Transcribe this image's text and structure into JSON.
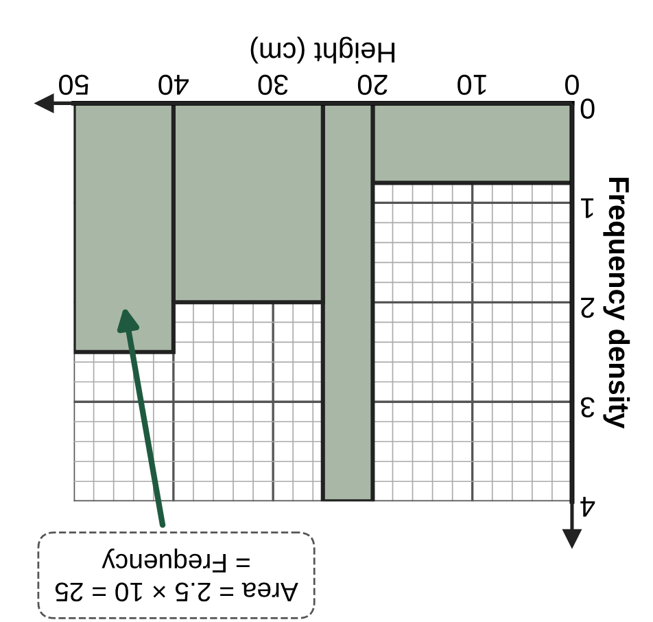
{
  "chart_data": {
    "type": "histogram",
    "xlabel": "Height (cm)",
    "ylabel": "Frequency density",
    "bins": [
      0,
      20,
      25,
      40,
      50
    ],
    "values": [
      0.8,
      4,
      2,
      2.5
    ],
    "color": "#a9b8a6",
    "xlim": [
      50,
      0
    ],
    "ylim": [
      4,
      0
    ],
    "xticks": [
      0,
      10,
      20,
      30,
      40,
      50
    ],
    "yticks": [
      0,
      1,
      2,
      3,
      4
    ],
    "grid": true,
    "annotations": [
      "Area = 2.5 × 10 = 25\n= Frequency"
    ]
  }
}
